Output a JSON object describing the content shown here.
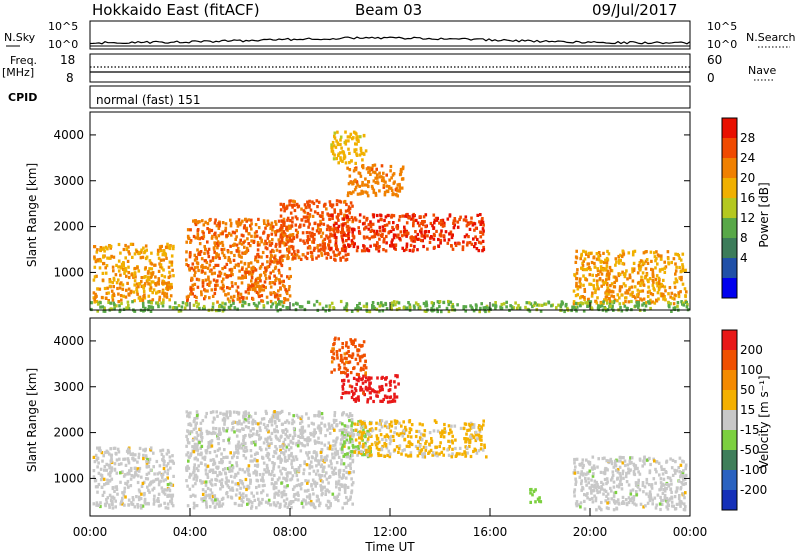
{
  "header": {
    "radar": "Hokkaido East (fitACF)",
    "beam": "Beam 03",
    "date": "09/Jul/2017"
  },
  "top_panel": {
    "nsky_label": "N.Sky",
    "nsearch_label": "N.Search",
    "left_ticks": [
      "10^5",
      "10^0"
    ],
    "right_ticks": [
      "10^5",
      "10^0"
    ],
    "freq_label": "Freq.",
    "freq_unit": "[MHz]",
    "freq_ticks": [
      "18",
      "8"
    ],
    "nave_label": "Nave",
    "nave_ticks": [
      "60",
      "0"
    ],
    "cpid_label": "CPID",
    "cpid_value": "normal (fast) 151"
  },
  "axes": {
    "ylabel": "Slant Range [km]",
    "xlabel": "Time UT",
    "yticks": [
      "4000",
      "3000",
      "2000",
      "1000"
    ],
    "xticks": [
      "00:00",
      "04:00",
      "08:00",
      "12:00",
      "16:00",
      "20:00",
      "00:00"
    ]
  },
  "power_colorbar": {
    "label": "Power [dB]",
    "ticks": [
      "28",
      "24",
      "20",
      "16",
      "12",
      "8",
      "4"
    ],
    "colors": [
      "#0000ee",
      "#2050a8",
      "#3c7c5a",
      "#58a848",
      "#b4c820",
      "#f0b000",
      "#f08000",
      "#f04a00",
      "#e81000"
    ]
  },
  "velocity_colorbar": {
    "label": "Velocity [m s⁻¹]",
    "ticks": [
      "200",
      "100",
      "50",
      "15",
      "-15",
      "-50",
      "-100",
      "-200"
    ],
    "colors": [
      "#1530b8",
      "#2a62c0",
      "#3f7e5a",
      "#7cd040",
      "#c8c8c8",
      "#f4b000",
      "#f48a00",
      "#f05000",
      "#e81818"
    ]
  },
  "chart_data": [
    {
      "type": "heatmap",
      "name": "power",
      "x_range": [
        0,
        24
      ],
      "ylim": [
        180,
        4500
      ],
      "colorbar_range": [
        0,
        33
      ],
      "regions": [
        {
          "t": [
            0.1,
            3.3
          ],
          "r": [
            380,
            1650
          ],
          "v": 22
        },
        {
          "t": [
            3.8,
            8.0
          ],
          "r": [
            380,
            2200
          ],
          "v": 25
        },
        {
          "t": [
            7.5,
            10.5
          ],
          "r": [
            1300,
            2600
          ],
          "v": 27
        },
        {
          "t": [
            9.5,
            15.7
          ],
          "r": [
            1500,
            2300
          ],
          "v": 29
        },
        {
          "t": [
            10.2,
            12.5
          ],
          "r": [
            2700,
            3400
          ],
          "v": 24
        },
        {
          "t": [
            9.6,
            11.0
          ],
          "r": [
            3400,
            4100
          ],
          "v": 20
        },
        {
          "t": [
            19.3,
            23.8
          ],
          "r": [
            350,
            1500
          ],
          "v": 22
        },
        {
          "t": [
            0.0,
            24.0
          ],
          "r": [
            180,
            400
          ],
          "v": 14
        }
      ]
    },
    {
      "type": "heatmap",
      "name": "velocity",
      "x_range": [
        0,
        24
      ],
      "ylim": [
        180,
        4500
      ],
      "colorbar_range": [
        -250,
        250
      ],
      "regions": [
        {
          "t": [
            0.1,
            3.3
          ],
          "r": [
            380,
            1700
          ],
          "v": 0
        },
        {
          "t": [
            3.8,
            10.5
          ],
          "r": [
            380,
            2500
          ],
          "v": 0
        },
        {
          "t": [
            10.0,
            11.2
          ],
          "r": [
            1500,
            2300
          ],
          "v": -30
        },
        {
          "t": [
            10.5,
            15.8
          ],
          "r": [
            1500,
            2300
          ],
          "v": 40
        },
        {
          "t": [
            10.0,
            12.3
          ],
          "r": [
            2700,
            3300
          ],
          "v": 220
        },
        {
          "t": [
            9.6,
            11.0
          ],
          "r": [
            3300,
            4100
          ],
          "v": 160
        },
        {
          "t": [
            17.5,
            18.0
          ],
          "r": [
            500,
            800
          ],
          "v": -60
        },
        {
          "t": [
            19.3,
            23.8
          ],
          "r": [
            350,
            1500
          ],
          "v": 0
        }
      ]
    }
  ]
}
